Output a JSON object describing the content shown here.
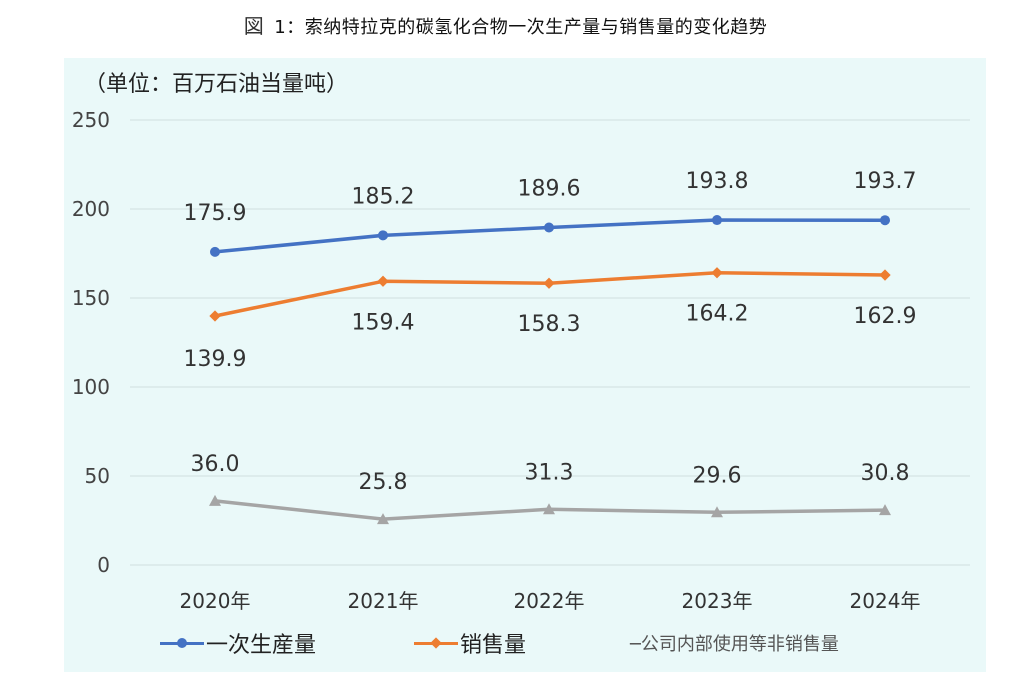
{
  "figure": {
    "prefix": "図",
    "title": "1：索纳特拉克的碳氢化合物一次生产量与销售量的变化趋势"
  },
  "unit_label": "（单位：百万石油当量吨）",
  "colors": {
    "primary": "#4472c4",
    "sales": "#ed7d31",
    "internal": "#a5a5a5",
    "panel_bg": "#eaf9f9",
    "grid": "#d0dede"
  },
  "legend": {
    "items": [
      {
        "label": "一次生産量",
        "marker": "dot"
      },
      {
        "label": "销售量",
        "marker": "diamond"
      },
      {
        "label": "─公司内部使用等非销售量",
        "marker": "none"
      }
    ]
  },
  "chart_data": {
    "type": "line",
    "categories": [
      "2020年",
      "2021年",
      "2022年",
      "2023年",
      "2024年"
    ],
    "ylim": [
      0,
      250
    ],
    "yticks": [
      0,
      50,
      100,
      150,
      200,
      250
    ],
    "grid": true,
    "legend_position": "bottom",
    "series": [
      {
        "name": "一次生産量",
        "values": [
          175.9,
          185.2,
          189.6,
          193.8,
          193.7
        ],
        "labels": [
          "175.9",
          "185.2",
          "189.6",
          "193.8",
          "193.7"
        ],
        "marker": "circle"
      },
      {
        "name": "销售量",
        "values": [
          139.9,
          159.4,
          158.3,
          164.2,
          162.9
        ],
        "labels": [
          "139.9",
          "159.4",
          "158.3",
          "164.2",
          "162.9"
        ],
        "marker": "diamond"
      },
      {
        "name": "公司内部使用等非销售量",
        "values": [
          36.0,
          25.8,
          31.3,
          29.6,
          30.8
        ],
        "labels": [
          "36.0",
          "25.8",
          "31.3",
          "29.6",
          "30.8"
        ],
        "marker": "triangle"
      }
    ]
  }
}
